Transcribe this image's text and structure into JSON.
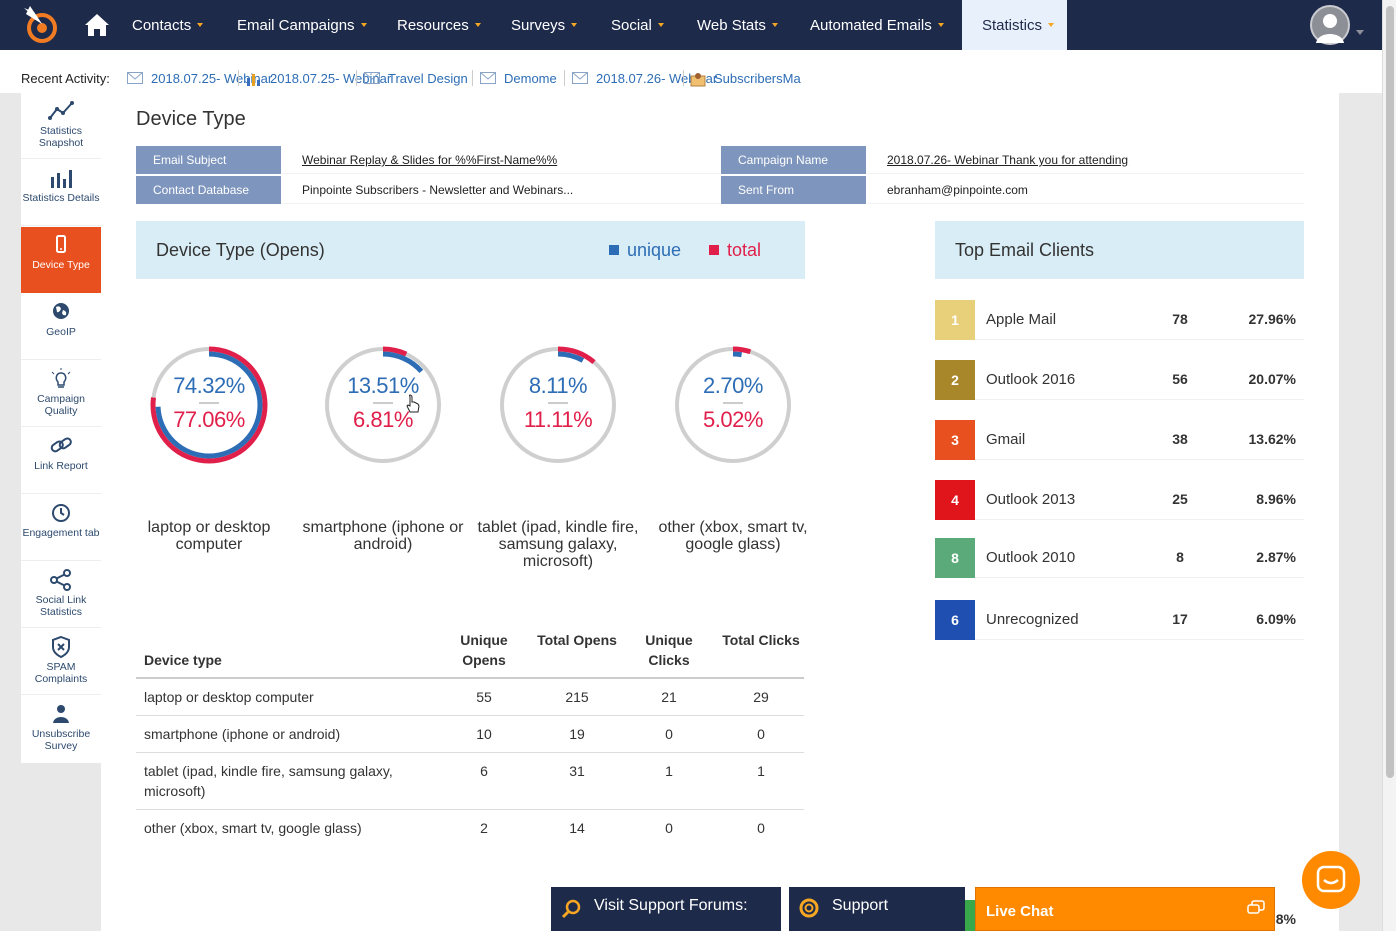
{
  "nav": {
    "items": [
      {
        "label": "Contacts"
      },
      {
        "label": "Email Campaigns"
      },
      {
        "label": "Resources"
      },
      {
        "label": "Surveys"
      },
      {
        "label": "Social"
      },
      {
        "label": "Web Stats"
      },
      {
        "label": "Automated Emails"
      },
      {
        "label": "Statistics",
        "active": true
      }
    ]
  },
  "recent": {
    "label": "Recent Activity:",
    "items": [
      {
        "label": "2018.07.25- Webinar",
        "icon": "envelope-icon"
      },
      {
        "label": "2018.07.25- Webinar",
        "icon": "bar-chart-icon"
      },
      {
        "label": "Travel Design",
        "icon": "envelope-icon"
      },
      {
        "label": "Demome",
        "icon": "envelope-icon"
      },
      {
        "label": "2018.07.26- Webinar",
        "icon": "envelope-icon"
      },
      {
        "label": "SubscribersMa",
        "icon": "contacts-icon"
      }
    ]
  },
  "sidebar": {
    "items": [
      {
        "label": "Statistics Snapshot",
        "icon": "line-chart-icon"
      },
      {
        "label": "Statistics Details",
        "icon": "bar-chart-icon"
      },
      {
        "label": "Device Type",
        "icon": "mobile-icon",
        "active": true
      },
      {
        "label": "GeoIP",
        "icon": "globe-icon"
      },
      {
        "label": "Campaign Quality",
        "icon": "lightbulb-icon"
      },
      {
        "label": "Link Report",
        "icon": "link-icon"
      },
      {
        "label": "Engagement tab",
        "icon": "clock-icon"
      },
      {
        "label": "Social Link Statistics",
        "icon": "share-icon"
      },
      {
        "label": "SPAM Complaints",
        "icon": "shield-x-icon"
      },
      {
        "label": "Unsubscribe Survey",
        "icon": "user-icon"
      }
    ]
  },
  "page": {
    "title": "Device Type"
  },
  "info": {
    "email_subject_label": "Email Subject",
    "email_subject": "Webinar Replay & Slides for %%First-Name%%",
    "campaign_name_label": "Campaign Name",
    "campaign_name": "2018.07.26- Webinar Thank you for attending",
    "contact_db_label": "Contact Database",
    "contact_db": "Pinpointe Subscribers - Newsletter and Webinars...",
    "sent_from_label": "Sent From",
    "sent_from": "ebranham@pinpointe.com"
  },
  "device_chart": {
    "title": "Device Type (Opens)",
    "legend_unique": "unique",
    "legend_total": "total",
    "colors": {
      "unique": "#2d6db5",
      "total": "#e0204a",
      "track": "#cfcfcf"
    }
  },
  "chart_data": {
    "type": "pie",
    "categories": [
      "laptop or desktop computer",
      "smartphone (iphone or android)",
      "tablet (ipad, kindle fire, samsung galaxy, microsoft)",
      "other (xbox, smart tv, google glass)"
    ],
    "series": [
      {
        "name": "unique",
        "values": [
          74.32,
          13.51,
          8.11,
          2.7
        ]
      },
      {
        "name": "total",
        "values": [
          77.06,
          6.81,
          11.11,
          5.02
        ]
      }
    ],
    "labels": {
      "unique": [
        "74.32%",
        "13.51%",
        "8.11%",
        "2.70%"
      ],
      "total": [
        "77.06%",
        "6.81%",
        "11.11%",
        "5.02%"
      ]
    }
  },
  "table": {
    "headers": [
      "Device type",
      "Unique Opens",
      "Total Opens",
      "Unique Clicks",
      "Total Clicks"
    ],
    "rows": [
      [
        "laptop or desktop computer",
        "55",
        "215",
        "21",
        "29"
      ],
      [
        "smartphone (iphone or android)",
        "10",
        "19",
        "0",
        "0"
      ],
      [
        "tablet (ipad, kindle fire, samsung galaxy, microsoft)",
        "6",
        "31",
        "1",
        "1"
      ],
      [
        "other (xbox, smart tv, google glass)",
        "2",
        "14",
        "0",
        "0"
      ]
    ]
  },
  "clients": {
    "title": "Top Email Clients",
    "items": [
      {
        "rank": "1",
        "name": "Apple Mail",
        "count": "78",
        "pct": "27.96%",
        "color": "#e8cf7a"
      },
      {
        "rank": "2",
        "name": "Outlook 2016",
        "count": "56",
        "pct": "20.07%",
        "color": "#a8862a"
      },
      {
        "rank": "3",
        "name": "Gmail",
        "count": "38",
        "pct": "13.62%",
        "color": "#e8501f"
      },
      {
        "rank": "4",
        "name": "Outlook 2013",
        "count": "25",
        "pct": "8.96%",
        "color": "#e0141b"
      },
      {
        "rank": "8",
        "name": "Outlook 2010",
        "count": "8",
        "pct": "2.87%",
        "color": "#5bab7a"
      },
      {
        "rank": "6",
        "name": "Unrecognized",
        "count": "17",
        "pct": "6.09%",
        "color": "#1f4fb0"
      }
    ],
    "partial_pct": "8%"
  },
  "footer": {
    "forums": "Visit Support Forums:",
    "support": "Support",
    "livechat": "Live Chat"
  }
}
